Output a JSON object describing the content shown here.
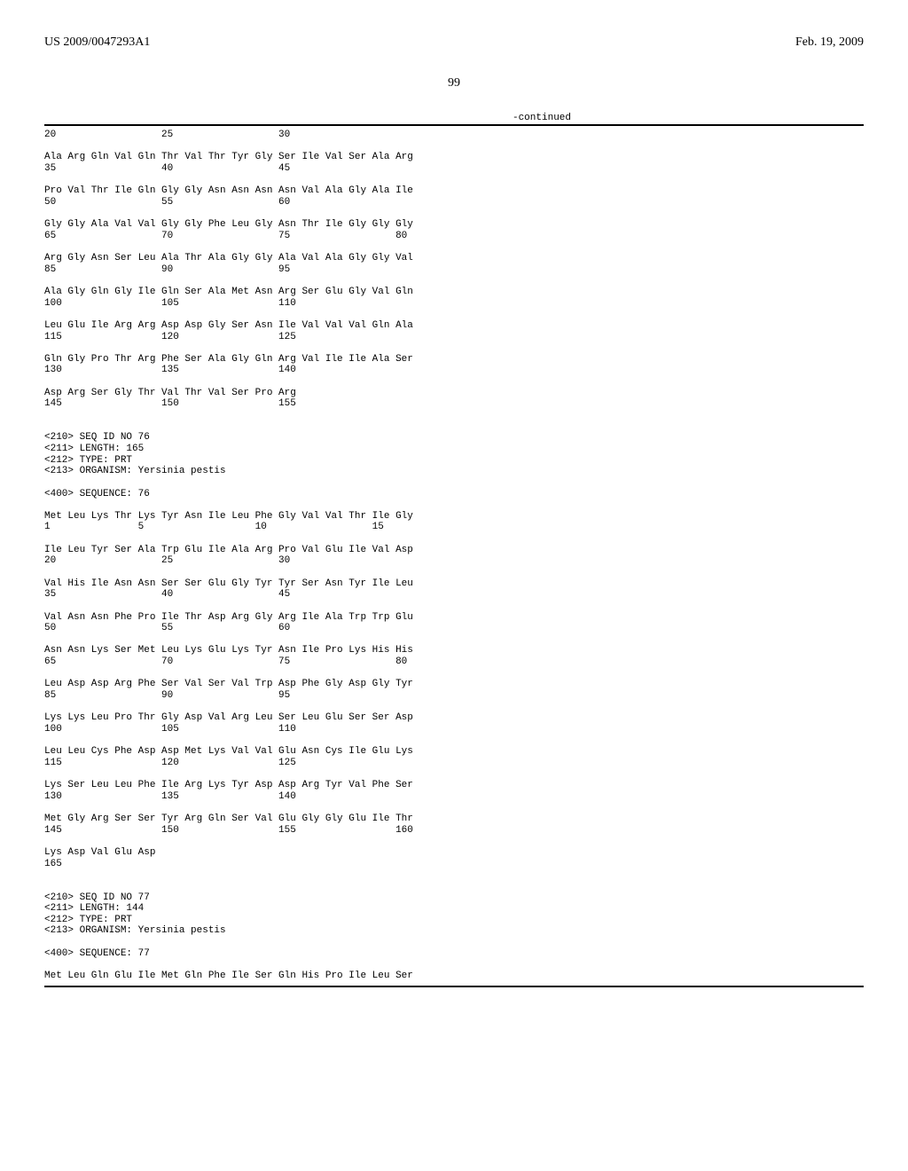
{
  "header": {
    "patent_number": "US 2009/0047293A1",
    "date": "Feb. 19, 2009"
  },
  "page_number": "99",
  "continued_label": "-continued",
  "sequence_text": "20                  25                  30\n\nAla Arg Gln Val Gln Thr Val Thr Tyr Gly Ser Ile Val Ser Ala Arg\n35                  40                  45\n\nPro Val Thr Ile Gln Gly Gly Asn Asn Asn Asn Val Ala Gly Ala Ile\n50                  55                  60\n\nGly Gly Ala Val Val Gly Gly Phe Leu Gly Asn Thr Ile Gly Gly Gly\n65                  70                  75                  80\n\nArg Gly Asn Ser Leu Ala Thr Ala Gly Gly Ala Val Ala Gly Gly Val\n85                  90                  95\n\nAla Gly Gln Gly Ile Gln Ser Ala Met Asn Arg Ser Glu Gly Val Gln\n100                 105                 110\n\nLeu Glu Ile Arg Arg Asp Asp Gly Ser Asn Ile Val Val Val Gln Ala\n115                 120                 125\n\nGln Gly Pro Thr Arg Phe Ser Ala Gly Gln Arg Val Ile Ile Ala Ser\n130                 135                 140\n\nAsp Arg Ser Gly Thr Val Thr Val Ser Pro Arg\n145                 150                 155\n\n\n<210> SEQ ID NO 76\n<211> LENGTH: 165\n<212> TYPE: PRT\n<213> ORGANISM: Yersinia pestis\n\n<400> SEQUENCE: 76\n\nMet Leu Lys Thr Lys Tyr Asn Ile Leu Phe Gly Val Val Thr Ile Gly\n1               5                   10                  15\n\nIle Leu Tyr Ser Ala Trp Glu Ile Ala Arg Pro Val Glu Ile Val Asp\n20                  25                  30\n\nVal His Ile Asn Asn Ser Ser Glu Gly Tyr Tyr Ser Asn Tyr Ile Leu\n35                  40                  45\n\nVal Asn Asn Phe Pro Ile Thr Asp Arg Gly Arg Ile Ala Trp Trp Glu\n50                  55                  60\n\nAsn Asn Lys Ser Met Leu Lys Glu Lys Tyr Asn Ile Pro Lys His His\n65                  70                  75                  80\n\nLeu Asp Asp Arg Phe Ser Val Ser Val Trp Asp Phe Gly Asp Gly Tyr\n85                  90                  95\n\nLys Lys Leu Pro Thr Gly Asp Val Arg Leu Ser Leu Glu Ser Ser Asp\n100                 105                 110\n\nLeu Leu Cys Phe Asp Asp Met Lys Val Val Glu Asn Cys Ile Glu Lys\n115                 120                 125\n\nLys Ser Leu Leu Phe Ile Arg Lys Tyr Asp Asp Arg Tyr Val Phe Ser\n130                 135                 140\n\nMet Gly Arg Ser Ser Tyr Arg Gln Ser Val Glu Gly Gly Glu Ile Thr\n145                 150                 155                 160\n\nLys Asp Val Glu Asp\n165\n\n\n<210> SEQ ID NO 77\n<211> LENGTH: 144\n<212> TYPE: PRT\n<213> ORGANISM: Yersinia pestis\n\n<400> SEQUENCE: 77\n\nMet Leu Gln Glu Ile Met Gln Phe Ile Ser Gln His Pro Ile Leu Ser"
}
